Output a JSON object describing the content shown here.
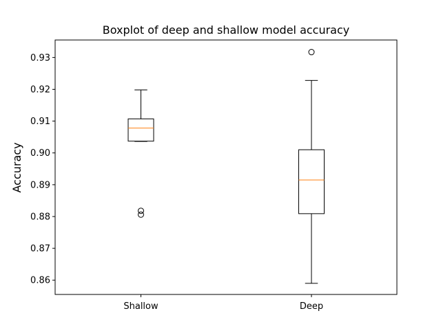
{
  "chart_data": {
    "type": "boxplot",
    "title": "Boxplot of deep and shallow model accuracy",
    "xlabel": "",
    "ylabel": "Accuracy",
    "ylim": [
      0.8555,
      0.9355
    ],
    "yticks": [
      0.86,
      0.87,
      0.88,
      0.89,
      0.9,
      0.91,
      0.92,
      0.93
    ],
    "ytick_labels": [
      "0.86",
      "0.87",
      "0.88",
      "0.89",
      "0.90",
      "0.91",
      "0.92",
      "0.93"
    ],
    "categories": [
      "Shallow",
      "Deep"
    ],
    "boxes": [
      {
        "category": "Shallow",
        "whisker_low": 0.9036,
        "q1": 0.9037,
        "median": 0.9078,
        "q3": 0.9107,
        "whisker_high": 0.9198,
        "outliers": [
          0.8806,
          0.8818
        ]
      },
      {
        "category": "Deep",
        "whisker_low": 0.859,
        "q1": 0.8809,
        "median": 0.8915,
        "q3": 0.901,
        "whisker_high": 0.9228,
        "outliers": [
          0.9317
        ]
      }
    ],
    "colors": {
      "box": "#000000",
      "median": "#ff7f0e",
      "background": "#ffffff"
    },
    "grid": false
  }
}
